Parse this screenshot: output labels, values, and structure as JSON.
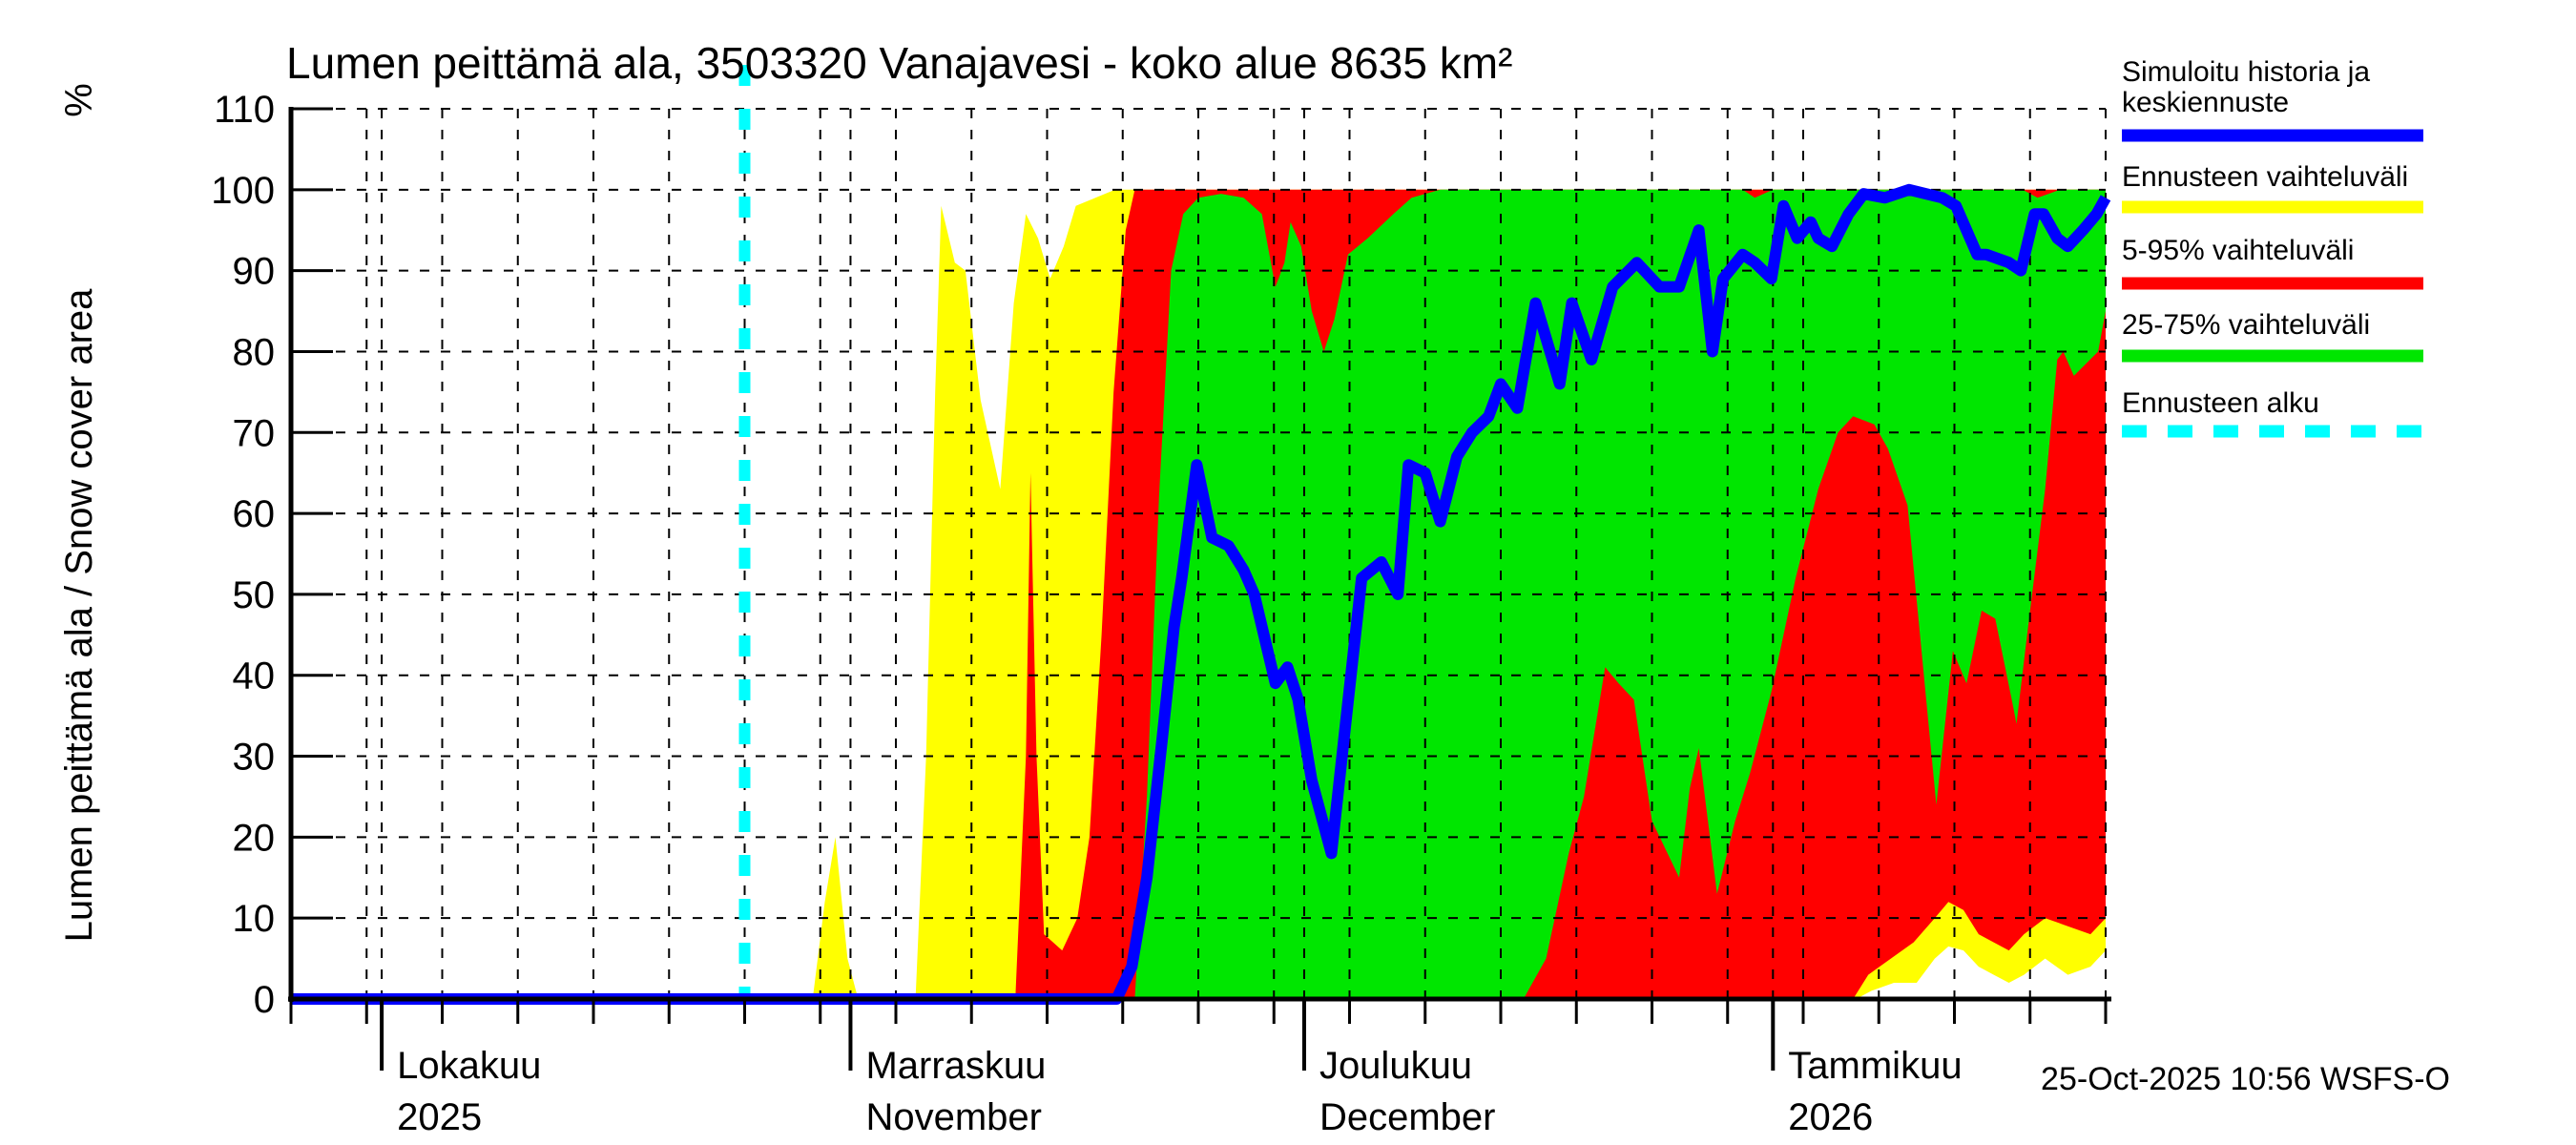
{
  "chart_data": {
    "type": "area",
    "title": "Lumen peittämä ala, 3503320 Vanajavesi - koko alue 8635 km²",
    "timestamp": "25-Oct-2025 10:56 WSFS-O",
    "background": "#ffffff",
    "grid": "dashed-black",
    "y_axis": {
      "label": "Lumen peittämä ala / Snow cover area",
      "unit": "%",
      "range": [
        0,
        110
      ],
      "ticks": [
        0,
        10,
        20,
        30,
        40,
        50,
        60,
        70,
        80,
        90,
        100,
        110
      ]
    },
    "x_axis": {
      "unit": "days from chart left edge (late Sep 2025)",
      "range_days": [
        0,
        120
      ],
      "minor_tick_step_days": 5,
      "month_ticks": [
        {
          "day": 6,
          "label": "Lokakuu",
          "sublabel": "2025"
        },
        {
          "day": 37,
          "label": "Marraskuu",
          "sublabel": "November"
        },
        {
          "day": 67,
          "label": "Joulukuu",
          "sublabel": "December"
        },
        {
          "day": 98,
          "label": "Tammikuu",
          "sublabel": "2026"
        }
      ]
    },
    "legend": {
      "position": "top-right",
      "items": [
        {
          "label_lines": [
            "Simuloitu historia ja",
            "keskiennuste"
          ],
          "color": "#0000ff",
          "dashed": false,
          "series": "median"
        },
        {
          "label_lines": [
            "Ennusteen vaihteluväli"
          ],
          "color": "#ffff00",
          "dashed": false,
          "series": "range_min_max"
        },
        {
          "label_lines": [
            "5-95% vaihteluväli"
          ],
          "color": "#ff0000",
          "dashed": false,
          "series": "p5_p95"
        },
        {
          "label_lines": [
            "25-75% vaihteluväli"
          ],
          "color": "#00e600",
          "dashed": false,
          "series": "p25_p75"
        },
        {
          "label_lines": [
            "Ennusteen alku"
          ],
          "color": "#00ffff",
          "dashed": true,
          "series": "forecast_start"
        }
      ]
    },
    "forecast_start_day": 30,
    "forecast_start_color": "#00ffff",
    "bands": [
      {
        "name": "range_min_max",
        "color": "#ffff00",
        "upper": [
          [
            0,
            0
          ],
          [
            34.5,
            0
          ],
          [
            35.3,
            12
          ],
          [
            36,
            20
          ],
          [
            36.8,
            5
          ],
          [
            37.5,
            0
          ],
          [
            41.3,
            0
          ],
          [
            42,
            30
          ],
          [
            42.6,
            75
          ],
          [
            43,
            98
          ],
          [
            43.9,
            91
          ],
          [
            44.6,
            90
          ],
          [
            45.6,
            74
          ],
          [
            46.9,
            63
          ],
          [
            47.8,
            86
          ],
          [
            48.6,
            97
          ],
          [
            49.4,
            94
          ],
          [
            50.2,
            89
          ],
          [
            51.1,
            93
          ],
          [
            51.9,
            98
          ],
          [
            53.2,
            99
          ],
          [
            54.5,
            100
          ],
          [
            120,
            100
          ]
        ],
        "lower": [
          [
            0,
            0
          ],
          [
            103.5,
            0
          ],
          [
            104.5,
            1
          ],
          [
            106,
            2
          ],
          [
            107.5,
            2
          ],
          [
            108.7,
            5
          ],
          [
            109.6,
            6.5
          ],
          [
            110.6,
            6
          ],
          [
            111.6,
            4
          ],
          [
            112.6,
            3
          ],
          [
            113.6,
            2
          ],
          [
            114.6,
            3
          ],
          [
            116,
            5
          ],
          [
            117.5,
            3
          ],
          [
            119,
            4
          ],
          [
            120,
            6
          ]
        ]
      },
      {
        "name": "p5_p95",
        "color": "#ff0000",
        "upper": [
          [
            0,
            0
          ],
          [
            47.9,
            0
          ],
          [
            48.6,
            30
          ],
          [
            48.9,
            65
          ],
          [
            49.3,
            30
          ],
          [
            49.8,
            8
          ],
          [
            51,
            6
          ],
          [
            52,
            10
          ],
          [
            52.8,
            20
          ],
          [
            53.6,
            45
          ],
          [
            54.4,
            75
          ],
          [
            55.2,
            95
          ],
          [
            55.8,
            100
          ],
          [
            120,
            100
          ]
        ],
        "lower": [
          [
            0,
            0
          ],
          [
            103.3,
            0
          ],
          [
            104.3,
            3
          ],
          [
            105.8,
            5
          ],
          [
            107.3,
            7
          ],
          [
            108.7,
            10
          ],
          [
            109.6,
            12
          ],
          [
            110.6,
            11
          ],
          [
            111.6,
            8
          ],
          [
            112.6,
            7
          ],
          [
            113.6,
            6
          ],
          [
            114.6,
            8
          ],
          [
            116,
            10
          ],
          [
            117.5,
            9
          ],
          [
            119,
            8
          ],
          [
            120,
            10
          ]
        ]
      },
      {
        "name": "p25_p75",
        "color": "#00e600",
        "upper": [
          [
            0,
            0
          ],
          [
            55.8,
            0
          ],
          [
            56.6,
            25
          ],
          [
            57.4,
            62
          ],
          [
            58.2,
            90
          ],
          [
            59,
            97
          ],
          [
            60,
            99
          ],
          [
            61.5,
            99.5
          ],
          [
            63,
            99
          ],
          [
            64.2,
            97
          ],
          [
            65.1,
            88
          ],
          [
            65.7,
            91
          ],
          [
            66.1,
            96
          ],
          [
            66.8,
            93
          ],
          [
            67.5,
            85
          ],
          [
            68.3,
            80
          ],
          [
            69,
            84
          ],
          [
            69.9,
            92
          ],
          [
            71.2,
            94
          ],
          [
            72.9,
            97
          ],
          [
            74.1,
            99
          ],
          [
            76,
            100
          ],
          [
            96,
            100
          ],
          [
            96.8,
            99
          ],
          [
            98,
            100
          ],
          [
            114.5,
            100
          ],
          [
            115.5,
            99
          ],
          [
            117,
            100
          ],
          [
            120,
            100
          ]
        ],
        "lower": [
          [
            0,
            0
          ],
          [
            56.4,
            0
          ],
          [
            81.5,
            0
          ],
          [
            83,
            5
          ],
          [
            84.5,
            18
          ],
          [
            85.5,
            25
          ],
          [
            86.9,
            41
          ],
          [
            87.8,
            39
          ],
          [
            88.8,
            37
          ],
          [
            90,
            22
          ],
          [
            91.8,
            15
          ],
          [
            92.5,
            26
          ],
          [
            93.1,
            31
          ],
          [
            94.3,
            13
          ],
          [
            95.5,
            22
          ],
          [
            96.5,
            28
          ],
          [
            97.9,
            38
          ],
          [
            99.5,
            52
          ],
          [
            101,
            63
          ],
          [
            102.3,
            70
          ],
          [
            103.3,
            72
          ],
          [
            104.7,
            71
          ],
          [
            105.6,
            68
          ],
          [
            106.9,
            61
          ],
          [
            108.8,
            24
          ],
          [
            109.9,
            43
          ],
          [
            110.8,
            39
          ],
          [
            111.8,
            48
          ],
          [
            112.7,
            47
          ],
          [
            113.9,
            36
          ],
          [
            114.1,
            34
          ],
          [
            115,
            48
          ],
          [
            116,
            63
          ],
          [
            116.8,
            79
          ],
          [
            117.2,
            80
          ],
          [
            117.9,
            77
          ],
          [
            119.5,
            80
          ],
          [
            120,
            85
          ]
        ]
      }
    ],
    "median_line": {
      "name": "median",
      "color": "#0000ff",
      "points": [
        [
          0,
          0
        ],
        [
          54.6,
          0
        ],
        [
          55.6,
          4
        ],
        [
          56.6,
          15
        ],
        [
          57.6,
          32
        ],
        [
          58.4,
          46
        ],
        [
          58.9,
          52
        ],
        [
          59.9,
          66
        ],
        [
          60.9,
          57
        ],
        [
          62,
          56
        ],
        [
          63,
          53
        ],
        [
          63.7,
          50
        ],
        [
          65.1,
          39
        ],
        [
          65.9,
          41
        ],
        [
          66.6,
          37
        ],
        [
          67.5,
          27
        ],
        [
          68.8,
          18
        ],
        [
          69.8,
          35
        ],
        [
          70.8,
          52
        ],
        [
          72.1,
          54
        ],
        [
          73.2,
          50
        ],
        [
          73.9,
          66
        ],
        [
          75,
          65
        ],
        [
          76,
          59
        ],
        [
          77.1,
          67
        ],
        [
          78.1,
          70
        ],
        [
          79.2,
          72
        ],
        [
          80,
          76
        ],
        [
          81.1,
          73
        ],
        [
          82.3,
          86
        ],
        [
          83.9,
          76
        ],
        [
          84.7,
          86
        ],
        [
          86,
          79
        ],
        [
          87.4,
          88
        ],
        [
          89,
          91
        ],
        [
          90.5,
          88
        ],
        [
          91.8,
          88
        ],
        [
          93.1,
          95
        ],
        [
          94,
          80
        ],
        [
          94.7,
          89
        ],
        [
          96,
          92
        ],
        [
          96.8,
          91
        ],
        [
          97.9,
          89
        ],
        [
          98.7,
          98
        ],
        [
          99.6,
          94
        ],
        [
          100.5,
          96
        ],
        [
          101,
          94
        ],
        [
          101.9,
          93
        ],
        [
          103,
          97
        ],
        [
          104,
          99.5
        ],
        [
          105.4,
          99
        ],
        [
          107,
          100
        ],
        [
          108.1,
          99.5
        ],
        [
          109.2,
          99
        ],
        [
          110.1,
          98
        ],
        [
          111.5,
          92
        ],
        [
          112.1,
          92
        ],
        [
          113.6,
          91
        ],
        [
          114.4,
          90
        ],
        [
          115.3,
          97
        ],
        [
          115.9,
          97
        ],
        [
          116.8,
          94
        ],
        [
          117.5,
          93
        ],
        [
          118.5,
          95
        ],
        [
          119.4,
          97
        ],
        [
          120,
          99
        ]
      ]
    }
  }
}
